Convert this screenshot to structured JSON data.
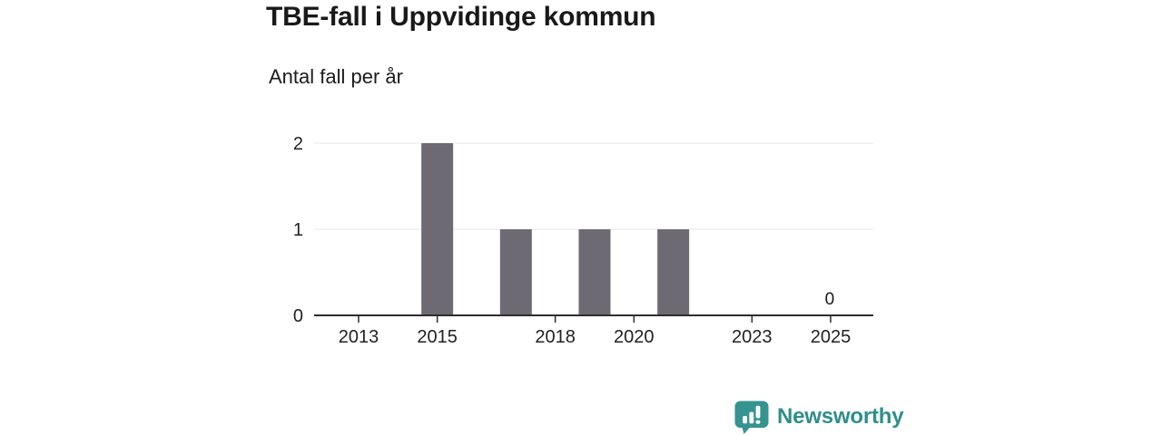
{
  "header": {
    "title": "TBE-fall i Uppvidinge kommun",
    "subtitle": "Antal fall per år"
  },
  "chart_data": {
    "type": "bar",
    "title": "TBE-fall i Uppvidinge kommun",
    "subtitle": "Antal fall per år",
    "ylabel": "Antal fall per år",
    "categories": [
      2012,
      2013,
      2014,
      2015,
      2016,
      2017,
      2018,
      2019,
      2020,
      2021,
      2022,
      2023,
      2024,
      2025
    ],
    "values": [
      0,
      0,
      0,
      2,
      0,
      1,
      0,
      1,
      0,
      1,
      0,
      0,
      0,
      0
    ],
    "xticks": [
      2013,
      2015,
      2018,
      2020,
      2023,
      2025
    ],
    "yticks": [
      0,
      1,
      2
    ],
    "ylim": [
      0,
      2
    ],
    "grid": "horizontal",
    "legend": "none",
    "bar_color": "#6e6a74",
    "axis_color": "#2d2d2d",
    "gridline_color": "#e7e7e7",
    "tick_label_color": "#222222",
    "data_labels": [
      {
        "category": 2025,
        "value": 0,
        "label": "0"
      }
    ]
  },
  "branding": {
    "name": "Newsworthy",
    "color": "#2e8f8b",
    "icon": "newsworthy-bar-chart-bubble-icon",
    "icon_color": "#359390"
  }
}
